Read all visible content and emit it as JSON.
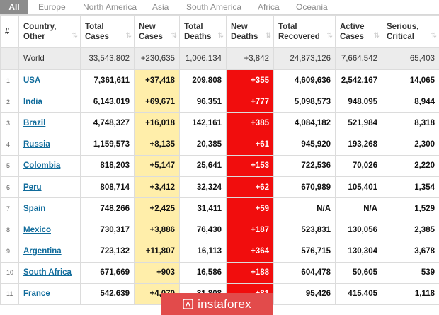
{
  "tabs": [
    "All",
    "Europe",
    "North America",
    "Asia",
    "South America",
    "Africa",
    "Oceania"
  ],
  "columns": [
    {
      "label": "#",
      "sort": false
    },
    {
      "label": "Country, Other",
      "sort": true
    },
    {
      "label": "Total Cases",
      "sort": true
    },
    {
      "label": "New Cases",
      "sort": true
    },
    {
      "label": "Total Deaths",
      "sort": true
    },
    {
      "label": "New Deaths",
      "sort": true
    },
    {
      "label": "Total Recovered",
      "sort": true
    },
    {
      "label": "Active Cases",
      "sort": true
    },
    {
      "label": "Serious, Critical",
      "sort": true
    }
  ],
  "world": [
    "",
    "World",
    "33,543,802",
    "+230,635",
    "1,006,134",
    "+3,842",
    "24,873,126",
    "7,664,542",
    "65,403"
  ],
  "rows": [
    [
      "1",
      "USA",
      "7,361,611",
      "+37,418",
      "209,808",
      "+355",
      "4,609,636",
      "2,542,167",
      "14,065"
    ],
    [
      "2",
      "India",
      "6,143,019",
      "+69,671",
      "96,351",
      "+777",
      "5,098,573",
      "948,095",
      "8,944"
    ],
    [
      "3",
      "Brazil",
      "4,748,327",
      "+16,018",
      "142,161",
      "+385",
      "4,084,182",
      "521,984",
      "8,318"
    ],
    [
      "4",
      "Russia",
      "1,159,573",
      "+8,135",
      "20,385",
      "+61",
      "945,920",
      "193,268",
      "2,300"
    ],
    [
      "5",
      "Colombia",
      "818,203",
      "+5,147",
      "25,641",
      "+153",
      "722,536",
      "70,026",
      "2,220"
    ],
    [
      "6",
      "Peru",
      "808,714",
      "+3,412",
      "32,324",
      "+62",
      "670,989",
      "105,401",
      "1,354"
    ],
    [
      "7",
      "Spain",
      "748,266",
      "+2,425",
      "31,411",
      "+59",
      "N/A",
      "N/A",
      "1,529"
    ],
    [
      "8",
      "Mexico",
      "730,317",
      "+3,886",
      "76,430",
      "+187",
      "523,831",
      "130,056",
      "2,385"
    ],
    [
      "9",
      "Argentina",
      "723,132",
      "+11,807",
      "16,113",
      "+364",
      "576,715",
      "130,304",
      "3,678"
    ],
    [
      "10",
      "South Africa",
      "671,669",
      "+903",
      "16,586",
      "+188",
      "604,478",
      "50,605",
      "539"
    ],
    [
      "11",
      "France",
      "542,639",
      "+4,070",
      "31,808",
      "+81",
      "95,426",
      "415,405",
      "1,118"
    ]
  ],
  "watermark": "instaforex",
  "colors": {
    "new_cases_bg": "#ffeeaa",
    "new_deaths_bg": "#f10d0d",
    "link": "#0f6b9b",
    "active_tab": "#8c8c8c",
    "watermark_bg": "#e24b4b"
  }
}
